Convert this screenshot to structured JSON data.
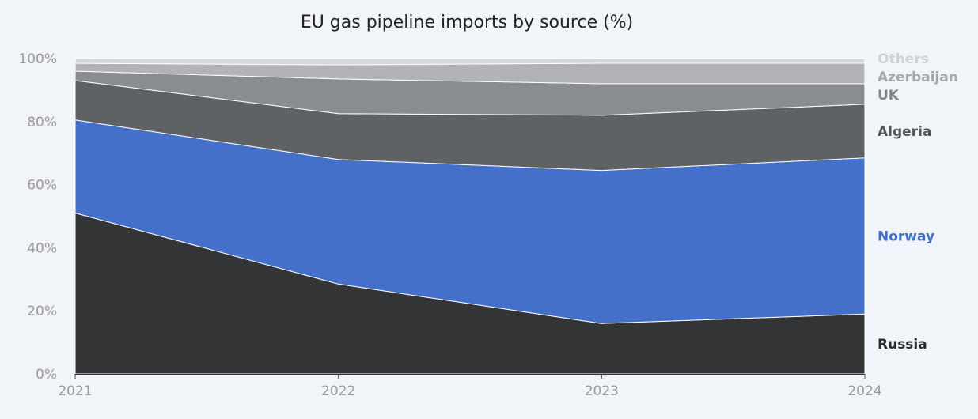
{
  "chart_data": {
    "type": "area",
    "stacked": true,
    "title": "EU gas pipeline imports by source (%)",
    "xlabel": "",
    "ylabel": "",
    "x": [
      "2021",
      "2022",
      "2023",
      "2024"
    ],
    "ylim": [
      0,
      100
    ],
    "y_ticks": [
      "0%",
      "20%",
      "40%",
      "60%",
      "80%",
      "100%"
    ],
    "y_tick_values": [
      0,
      20,
      40,
      60,
      80,
      100
    ],
    "grid": false,
    "legend": "right, direct labels at series end",
    "series": [
      {
        "name": "Russia",
        "values": [
          51.0,
          28.5,
          16.0,
          19.0
        ],
        "color": "#333436",
        "label_color": "#2b2b2b"
      },
      {
        "name": "Norway",
        "values": [
          29.5,
          39.5,
          48.5,
          49.5
        ],
        "color": "#4470c9",
        "label_color": "#3f6fc4"
      },
      {
        "name": "Algeria",
        "values": [
          12.5,
          14.5,
          17.5,
          17.0
        ],
        "color": "#5f6265",
        "label_color": "#555759"
      },
      {
        "name": "UK",
        "values": [
          3.0,
          11.0,
          10.0,
          6.5
        ],
        "color": "#8a8d90",
        "label_color": "#808285"
      },
      {
        "name": "Azerbaijan",
        "values": [
          2.5,
          4.5,
          6.5,
          6.5
        ],
        "color": "#b1b3b6",
        "label_color": "#a6a8ab"
      },
      {
        "name": "Others",
        "values": [
          1.5,
          2.0,
          1.5,
          1.5
        ],
        "color": "#d4d6d8",
        "label_color": "#d0d2d4"
      }
    ]
  }
}
